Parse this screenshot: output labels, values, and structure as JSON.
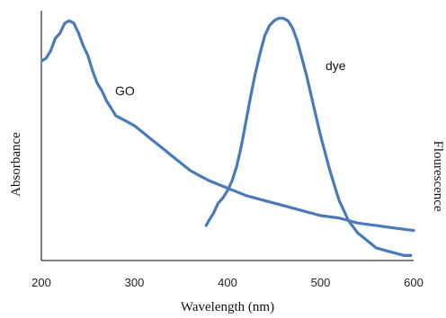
{
  "chart_data": {
    "type": "line",
    "title": "",
    "xlabel": "Wavelength (nm)",
    "ylabel_left": "Absorbance",
    "ylabel_right": "Flourescence",
    "xlim": [
      200,
      600
    ],
    "ylim": [
      0,
      1
    ],
    "xticks": [
      "200",
      "300",
      "400",
      "500",
      "600"
    ],
    "yticks": [],
    "grid": false,
    "legend": "none",
    "series": [
      {
        "name": "GO",
        "color": "#4a7ab9",
        "x": [
          201,
          205,
          210,
          215,
          220,
          225,
          230,
          235,
          240,
          245,
          250,
          255,
          260,
          265,
          270,
          275,
          280,
          290,
          300,
          310,
          320,
          330,
          340,
          350,
          360,
          370,
          380,
          400,
          420,
          440,
          460,
          480,
          500,
          520,
          540,
          560,
          580,
          600
        ],
        "y": [
          0.8,
          0.81,
          0.84,
          0.89,
          0.91,
          0.95,
          0.96,
          0.95,
          0.91,
          0.86,
          0.82,
          0.76,
          0.71,
          0.68,
          0.64,
          0.61,
          0.58,
          0.56,
          0.54,
          0.51,
          0.48,
          0.45,
          0.42,
          0.39,
          0.36,
          0.34,
          0.32,
          0.29,
          0.26,
          0.24,
          0.22,
          0.2,
          0.18,
          0.17,
          0.15,
          0.14,
          0.13,
          0.12
        ]
      },
      {
        "name": "dye",
        "color": "#4a7ab9",
        "x": [
          377,
          380,
          385,
          390,
          395,
          400,
          405,
          410,
          415,
          420,
          425,
          430,
          435,
          440,
          445,
          450,
          455,
          460,
          465,
          470,
          475,
          480,
          485,
          490,
          495,
          500,
          505,
          510,
          515,
          520,
          525,
          530,
          540,
          550,
          560,
          570,
          580,
          590,
          597
        ],
        "y": [
          0.14,
          0.16,
          0.19,
          0.23,
          0.25,
          0.28,
          0.32,
          0.38,
          0.46,
          0.56,
          0.66,
          0.75,
          0.83,
          0.9,
          0.94,
          0.96,
          0.97,
          0.97,
          0.96,
          0.93,
          0.88,
          0.81,
          0.74,
          0.66,
          0.58,
          0.5,
          0.43,
          0.36,
          0.3,
          0.24,
          0.2,
          0.16,
          0.11,
          0.08,
          0.05,
          0.04,
          0.03,
          0.02,
          0.02
        ]
      }
    ]
  }
}
